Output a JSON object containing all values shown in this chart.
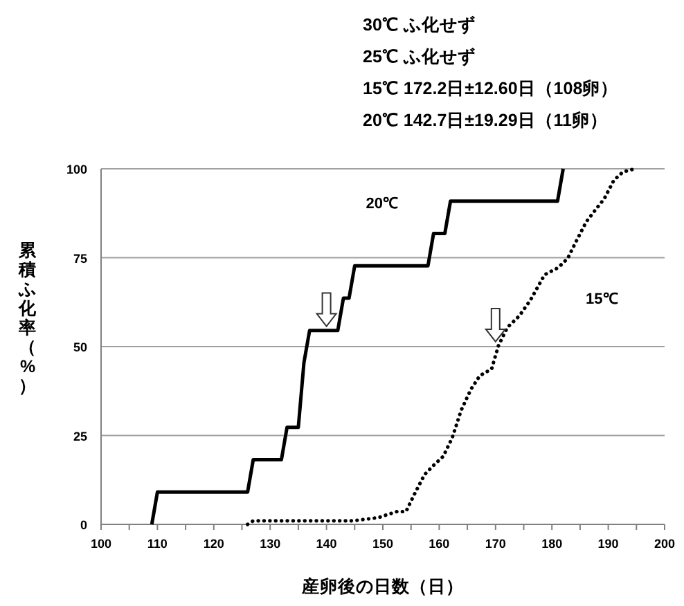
{
  "chart_data": {
    "type": "line",
    "annotations": [
      "30℃  ふ化せず",
      "25℃  ふ化せず",
      "15℃   172.2日±12.60日（108卵）",
      "20℃  142.7日±19.29日（11卵）"
    ],
    "xlabel": "産卵後の日数（日）",
    "ylabel": "累積ふ化率（%）",
    "xlim": [
      100,
      200
    ],
    "xticks": [
      100,
      {
        "value": 105,
        "label": null
      },
      110,
      {
        "value": 115,
        "label": null
      },
      120,
      {
        "value": 125,
        "label": null
      },
      130,
      {
        "value": 135,
        "label": null
      },
      140,
      {
        "value": 145,
        "label": null
      },
      150,
      {
        "value": 155,
        "label": null
      },
      160,
      {
        "value": 165,
        "label": null
      },
      170,
      {
        "value": 175,
        "label": null
      },
      180,
      {
        "value": 185,
        "label": null
      },
      190,
      {
        "value": 195,
        "label": null
      },
      200
    ],
    "ylim": [
      0,
      100
    ],
    "yticks": [
      0,
      25,
      50,
      75,
      100
    ],
    "grid": "y",
    "series": [
      {
        "name": "20℃",
        "color": "#000000",
        "line_style": "solid",
        "x": [
          109,
          110,
          126,
          127,
          132,
          133,
          135,
          136,
          137,
          142,
          143,
          144,
          145,
          158,
          159,
          161,
          162,
          181,
          182
        ],
        "values": [
          0,
          9.1,
          9.1,
          18.2,
          18.2,
          27.3,
          27.3,
          45.5,
          54.5,
          54.5,
          63.6,
          63.6,
          72.7,
          72.7,
          81.8,
          81.8,
          90.9,
          90.9,
          100
        ]
      },
      {
        "name": "15℃",
        "color": "#000000",
        "line_style": "dotted",
        "x": [
          126,
          127,
          144.7,
          149.2,
          152.5,
          154.1,
          155.7,
          157.4,
          159,
          160.7,
          162.3,
          163.9,
          165.6,
          167.2,
          169.3,
          170.5,
          172.1,
          174.2,
          176.2,
          178.7,
          181.1,
          182.8,
          184.4,
          186.1,
          187.7,
          189.3,
          191,
          192.6,
          194.7
        ],
        "values": [
          0,
          1,
          1,
          1.9,
          3.6,
          3.6,
          8.8,
          14,
          16.6,
          19.1,
          24.3,
          32.1,
          37.9,
          41.8,
          43.7,
          50.2,
          55.4,
          58.6,
          63.1,
          70.2,
          72.2,
          74.8,
          79.9,
          85.1,
          88.4,
          91.6,
          96.8,
          99.1,
          100
        ]
      }
    ]
  }
}
